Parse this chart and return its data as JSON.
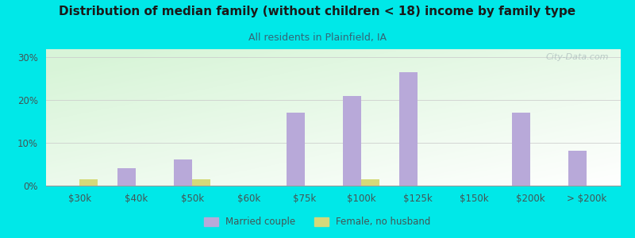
{
  "title": "Distribution of median family (without children < 18) income by family type",
  "subtitle": "All residents in Plainfield, IA",
  "categories": [
    "$30k",
    "$40k",
    "$50k",
    "$60k",
    "$75k",
    "$100k",
    "$125k",
    "$150k",
    "$200k",
    "> $200k"
  ],
  "married_couple": [
    0,
    4.0,
    6.2,
    0,
    17.0,
    21.0,
    26.5,
    0,
    17.0,
    8.2
  ],
  "female_no_husband": [
    1.5,
    0,
    1.5,
    0,
    0,
    1.5,
    0,
    0,
    0,
    0
  ],
  "married_color": "#b8a9d9",
  "female_color": "#d4d97a",
  "background_outer": "#00e8e8",
  "title_color": "#1a1a1a",
  "subtitle_color": "#336677",
  "axis_label_color": "#445555",
  "yticks": [
    0,
    10,
    20,
    30
  ],
  "ylim": [
    0,
    32
  ],
  "bar_width": 0.32,
  "legend_married": "Married couple",
  "legend_female": "Female, no husband",
  "watermark": "City-Data.com"
}
